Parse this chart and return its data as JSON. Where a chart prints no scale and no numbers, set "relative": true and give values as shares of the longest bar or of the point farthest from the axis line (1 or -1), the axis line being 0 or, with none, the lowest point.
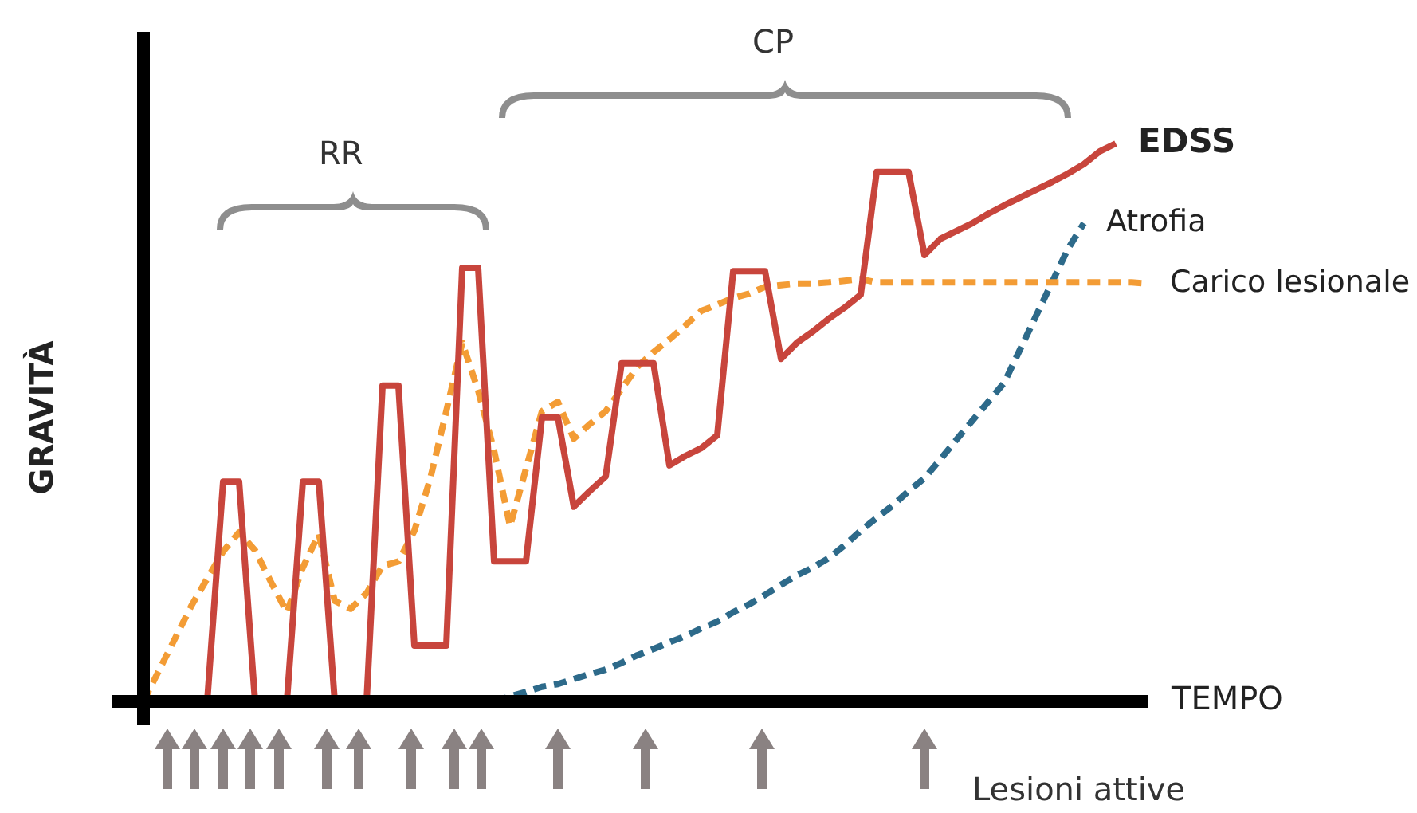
{
  "chart_data": {
    "type": "line",
    "relative": true,
    "xlabel": "TEMPO",
    "ylabel": "GRAVITÀ",
    "grid": false,
    "legend": false,
    "marker": "none",
    "annotations": [
      "RR",
      "CP",
      "Lesioni attive"
    ],
    "categories": [
      null,
      null,
      null,
      null,
      null,
      null,
      null,
      null,
      null,
      null,
      null,
      null,
      null,
      null,
      null,
      null,
      null,
      null,
      null,
      null,
      null,
      null,
      null,
      null,
      null,
      null,
      null,
      null,
      null,
      null,
      null,
      null,
      null,
      null,
      null,
      null,
      null,
      null,
      null,
      null,
      null,
      null,
      null,
      null,
      null,
      null,
      null,
      null,
      null,
      null,
      null,
      null,
      null,
      null,
      null,
      null,
      null,
      null,
      null,
      null,
      null,
      null,
      null,
      null
    ],
    "series": [
      {
        "name": "EDSS",
        "color": "#c8453c",
        "line_style": "solid",
        "values": [
          null,
          null,
          null,
          null,
          0,
          0.394,
          0.394,
          0,
          0,
          0,
          0.394,
          0.394,
          0,
          0,
          0,
          0.566,
          0.566,
          0.1,
          0.1,
          0.1,
          0.777,
          0.777,
          0.251,
          0.251,
          0.251,
          0.509,
          0.509,
          0.349,
          0.377,
          0.403,
          0.606,
          0.606,
          0.606,
          0.423,
          0.44,
          0.454,
          0.477,
          0.771,
          0.771,
          0.771,
          0.614,
          0.643,
          0.663,
          0.686,
          0.706,
          0.729,
          0.949,
          0.949,
          0.949,
          0.8,
          0.829,
          0.843,
          0.857,
          0.874,
          0.889,
          0.903,
          0.917,
          0.931,
          0.946,
          0.963,
          0.986,
          1,
          null,
          null
        ]
      },
      {
        "name": "Carico lesionale",
        "color": "#f39c35",
        "line_style": "dashed",
        "values": [
          0,
          0.057,
          0.114,
          0.171,
          0.22,
          0.269,
          0.303,
          0.271,
          0.214,
          0.16,
          0.24,
          0.3,
          0.18,
          0.166,
          0.194,
          0.243,
          0.251,
          0.306,
          0.4,
          0.52,
          0.643,
          0.557,
          0.449,
          0.314,
          0.417,
          0.52,
          0.537,
          0.471,
          0.497,
          0.52,
          0.56,
          0.6,
          0.626,
          0.649,
          0.674,
          0.7,
          0.711,
          0.723,
          0.731,
          0.743,
          0.746,
          0.749,
          0.749,
          0.751,
          0.754,
          0.757,
          0.751,
          0.751,
          0.751,
          0.751,
          0.751,
          0.751,
          0.751,
          0.751,
          0.751,
          0.751,
          0.751,
          0.751,
          0.751,
          0.751,
          0.751,
          0.751,
          0.751,
          0.749
        ]
      },
      {
        "name": "Atrofia",
        "color": "#2d6a8a",
        "line_style": "dashed",
        "values": [
          null,
          null,
          null,
          null,
          null,
          null,
          null,
          null,
          null,
          null,
          null,
          null,
          null,
          null,
          null,
          null,
          null,
          null,
          null,
          null,
          null,
          null,
          0,
          0.009,
          0.017,
          0.026,
          0.031,
          0.04,
          0.049,
          0.057,
          0.069,
          0.083,
          0.094,
          0.106,
          0.117,
          0.131,
          0.143,
          0.16,
          0.174,
          0.191,
          0.209,
          0.226,
          0.24,
          0.257,
          0.28,
          0.306,
          0.329,
          0.351,
          0.377,
          0.4,
          0.434,
          0.469,
          0.503,
          0.537,
          0.571,
          0.631,
          0.691,
          0.751,
          0.811,
          0.857,
          null,
          null,
          null,
          null
        ]
      }
    ]
  }
}
